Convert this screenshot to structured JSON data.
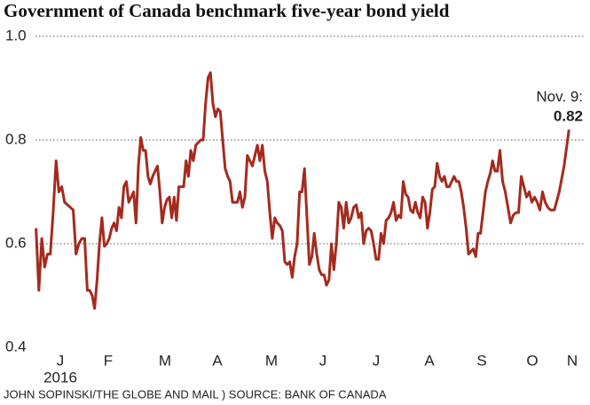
{
  "chart_data": {
    "type": "line",
    "title": "Government of Canada benchmark five-year bond yield",
    "source": "JOHN SOPINSKI/THE GLOBE AND MAIL ) SOURCE: BANK OF CANADA",
    "year": "2016",
    "annotation": "Nov. 9:",
    "categories": [
      "J",
      "F",
      "M",
      "A",
      "M",
      "J",
      "J",
      "A",
      "S",
      "O",
      "N"
    ],
    "color": "#a52a1e",
    "values": [
      [
        0.63,
        0.51,
        0.61,
        0.555,
        0.58,
        0.58,
        0.66,
        0.76,
        0.7,
        0.71,
        0.68,
        0.675,
        0.67,
        0.665,
        0.58,
        0.6,
        0.61,
        0.61
      ],
      [
        0.51,
        0.51,
        0.5,
        0.475,
        0.53,
        0.6,
        0.65,
        0.595,
        0.6,
        0.61,
        0.63,
        0.64,
        0.625,
        0.67,
        0.65,
        0.71,
        0.72,
        0.68,
        0.69,
        0.7
      ],
      [
        0.64,
        0.75,
        0.805,
        0.78,
        0.78,
        0.73,
        0.715,
        0.73,
        0.74,
        0.75,
        0.7,
        0.64,
        0.67,
        0.685,
        0.69,
        0.65,
        0.69,
        0.645,
        0.71,
        0.71,
        0.71,
        0.76
      ],
      [
        0.73,
        0.78,
        0.76,
        0.79,
        0.795,
        0.8,
        0.8,
        0.87,
        0.92,
        0.93,
        0.87,
        0.845,
        0.86,
        0.855,
        0.8,
        0.745,
        0.73,
        0.72,
        0.68,
        0.68,
        0.68
      ],
      [
        0.7,
        0.67,
        0.69,
        0.77,
        0.76,
        0.75,
        0.77,
        0.79,
        0.76,
        0.79,
        0.74,
        0.72,
        0.66,
        0.61,
        0.65,
        0.64,
        0.635,
        0.625,
        0.565,
        0.56,
        0.565
      ],
      [
        0.535,
        0.575,
        0.6,
        0.7,
        0.7,
        0.745,
        0.65,
        0.56,
        0.575,
        0.62,
        0.58,
        0.55,
        0.54,
        0.54,
        0.52,
        0.53,
        0.6,
        0.55,
        0.6,
        0.68,
        0.67
      ],
      [
        0.63,
        0.68,
        0.64,
        0.65,
        0.67,
        0.675,
        0.65,
        0.66,
        0.6,
        0.625,
        0.63,
        0.625,
        0.6,
        0.57,
        0.57,
        0.62,
        0.6,
        0.645,
        0.65,
        0.66,
        0.68
      ],
      [
        0.645,
        0.655,
        0.65,
        0.72,
        0.695,
        0.69,
        0.665,
        0.66,
        0.68,
        0.66,
        0.65,
        0.69,
        0.68,
        0.63,
        0.66,
        0.705,
        0.71,
        0.755,
        0.73,
        0.72,
        0.73,
        0.71
      ],
      [
        0.71,
        0.72,
        0.73,
        0.72,
        0.72,
        0.7,
        0.67,
        0.63,
        0.58,
        0.585,
        0.59,
        0.575,
        0.62,
        0.62,
        0.66,
        0.7,
        0.72,
        0.735,
        0.76,
        0.74,
        0.74
      ],
      [
        0.78,
        0.72,
        0.7,
        0.67,
        0.64,
        0.655,
        0.66,
        0.66,
        0.73,
        0.71,
        0.69,
        0.7,
        0.68,
        0.69,
        0.68,
        0.665,
        0.7,
        0.68,
        0.67,
        0.665
      ],
      [
        0.665,
        0.7,
        0.75,
        0.82
      ]
    ],
    "ylim": [
      0.4,
      1.0
    ],
    "yticks": [
      0.4,
      0.6,
      0.8,
      {
        "value": 1,
        "label": "1.0"
      }
    ],
    "grid": true
  }
}
